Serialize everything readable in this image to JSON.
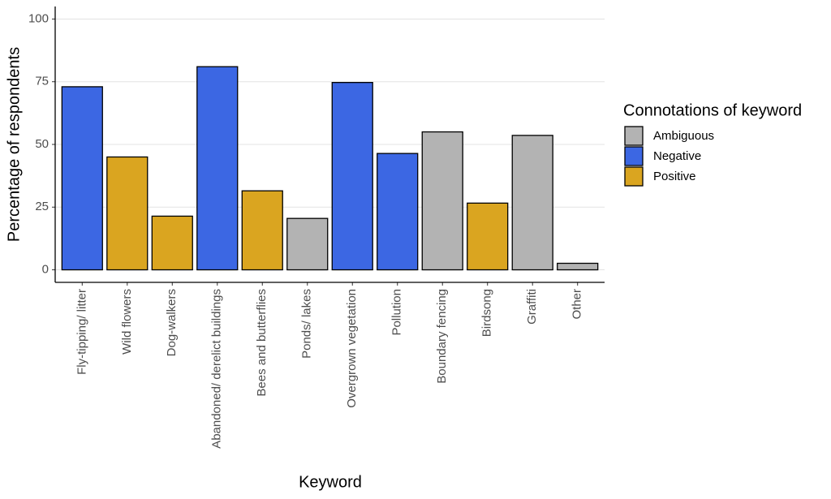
{
  "chart_data": {
    "type": "bar",
    "x_label": "Keyword",
    "y_label": "Percentage of respondents",
    "legend_title": "Connotations of keyword",
    "legend_position": "right",
    "categories": [
      "Fly-tipping/ litter",
      "Wild flowers",
      "Dog-walkers",
      "Abandoned/ derelict buildings",
      "Bees and butterflies",
      "Ponds/ lakes",
      "Overgrown vegetation",
      "Pollution",
      "Boundary fencing",
      "Birdsong",
      "Graffiti",
      "Other"
    ],
    "series": [
      {
        "name": "Ambiguous",
        "color": "#b3b3b3",
        "values": [
          null,
          null,
          null,
          null,
          null,
          20.5,
          null,
          null,
          55,
          null,
          53.6,
          2.6
        ]
      },
      {
        "name": "Negative",
        "color": "#3c67e3",
        "values": [
          73,
          null,
          null,
          81,
          null,
          null,
          74.7,
          46.4,
          null,
          null,
          null,
          null
        ]
      },
      {
        "name": "Positive",
        "color": "#daa520",
        "values": [
          null,
          45,
          21.4,
          null,
          31.5,
          null,
          null,
          null,
          null,
          26.6,
          null,
          null
        ]
      }
    ],
    "ylim": [
      -5,
      105
    ],
    "yticks": [
      0,
      25,
      50,
      75,
      100
    ],
    "grid": true
  }
}
